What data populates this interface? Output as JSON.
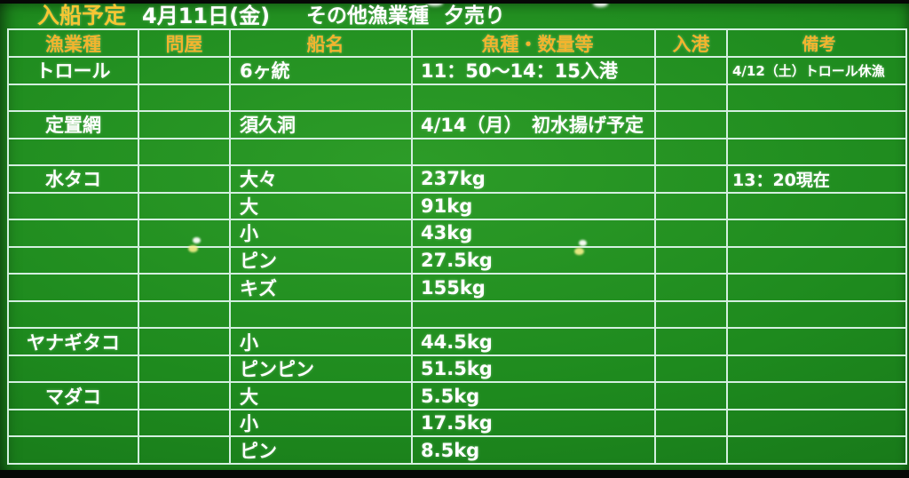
{
  "colors": {
    "board_green": "#1e8a1e",
    "grid_line": "#d4efe0",
    "header_text": "#f2b42e",
    "title_text": "#f6c633",
    "cell_text": "#ffffff",
    "frame_black": "#060806"
  },
  "title_bar": {
    "title": "入船予定",
    "date": "4月11日(金)",
    "category": "その他漁業種",
    "sale": "夕売り"
  },
  "table": {
    "columns": [
      "漁業種",
      "問屋",
      "船名",
      "魚種・数量等",
      "入港",
      "備考"
    ],
    "rows": [
      [
        "トロール",
        "",
        "6ヶ統",
        "11：50～14：15入港",
        "",
        "4/12（土）トロール休漁"
      ],
      [
        "",
        "",
        "",
        "",
        "",
        ""
      ],
      [
        "定置網",
        "",
        "須久洞",
        "4/14（月）　初水揚げ予定",
        "",
        ""
      ],
      [
        "",
        "",
        "",
        "",
        "",
        ""
      ],
      [
        "水タコ",
        "",
        "大々",
        "237kg",
        "",
        "13：20現在"
      ],
      [
        "",
        "",
        "大",
        "91kg",
        "",
        ""
      ],
      [
        "",
        "",
        "小",
        "43kg",
        "",
        ""
      ],
      [
        "",
        "",
        "ピン",
        "27.5kg",
        "",
        ""
      ],
      [
        "",
        "",
        "キズ",
        "155kg",
        "",
        ""
      ],
      [
        "",
        "",
        "",
        "",
        "",
        ""
      ],
      [
        "ヤナギタコ",
        "",
        "小",
        "44.5kg",
        "",
        ""
      ],
      [
        "",
        "",
        "ピンピン",
        "51.5kg",
        "",
        ""
      ],
      [
        "マダコ",
        "",
        "大",
        "5.5kg",
        "",
        ""
      ],
      [
        "",
        "",
        "小",
        "17.5kg",
        "",
        ""
      ],
      [
        "",
        "",
        "ピン",
        "8.5kg",
        "",
        ""
      ]
    ]
  }
}
